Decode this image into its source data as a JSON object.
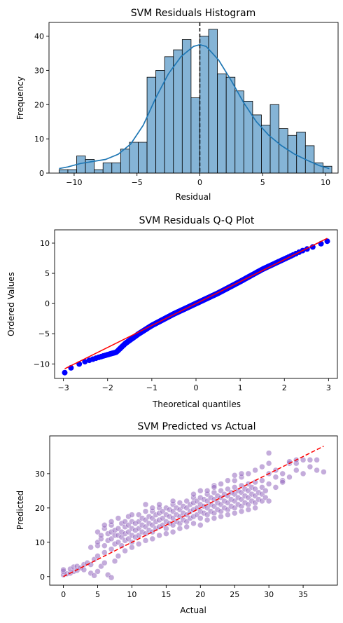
{
  "chart_data": [
    {
      "type": "bar",
      "title": "SVM Residuals Histogram",
      "xlabel": "Residual",
      "ylabel": "Frequency",
      "xlim": [
        -12,
        11
      ],
      "ylim": [
        0,
        44
      ],
      "xticks": [
        -10,
        -5,
        0,
        5,
        10
      ],
      "yticks": [
        0,
        10,
        20,
        30,
        40
      ],
      "bar_color": "#85b4d6",
      "kde_color": "#1f77b4",
      "bin_edges": [
        -11.2,
        -10.5,
        -9.8,
        -9.1,
        -8.4,
        -7.7,
        -7.0,
        -6.3,
        -5.6,
        -4.9,
        -4.2,
        -3.5,
        -2.8,
        -2.1,
        -1.4,
        -0.7,
        0.0,
        0.7,
        1.4,
        2.1,
        2.8,
        3.5,
        4.2,
        4.9,
        5.6,
        6.3,
        7.0,
        7.7,
        8.4,
        9.1,
        9.8,
        10.5
      ],
      "counts": [
        1,
        1,
        5,
        4,
        1,
        3,
        3,
        7,
        9,
        9,
        28,
        30,
        34,
        36,
        39,
        22,
        40,
        42,
        29,
        28,
        24,
        21,
        17,
        14,
        20,
        13,
        11,
        12,
        8,
        3,
        2
      ],
      "kde": {
        "x": [
          -11.2,
          -10.5,
          -9.5,
          -8.5,
          -7.5,
          -6.5,
          -5.5,
          -4.5,
          -3.5,
          -2.5,
          -1.5,
          -0.5,
          0.0,
          0.5,
          1.5,
          2.5,
          3.5,
          4.5,
          5.5,
          6.5,
          7.5,
          8.5,
          9.5,
          10.3
        ],
        "y": [
          1.3,
          1.8,
          2.8,
          3.4,
          4.0,
          5.5,
          8.5,
          14,
          22,
          29,
          34,
          37,
          37.5,
          37,
          33,
          27,
          20.5,
          15,
          11,
          8,
          5.6,
          3.8,
          2.2,
          1.3
        ]
      },
      "vline": {
        "x": 0,
        "style": "dashed",
        "color": "#000000"
      }
    },
    {
      "type": "scatter",
      "title": "SVM Residuals Q-Q Plot",
      "xlabel": "Theoretical quantiles",
      "ylabel": "Ordered Values",
      "xlim": [
        -3.2,
        3.2
      ],
      "ylim": [
        -12.4,
        12.2
      ],
      "xticks": [
        -3,
        -2,
        -1,
        0,
        1,
        2,
        3
      ],
      "yticks": [
        -10,
        -5,
        0,
        5,
        10
      ],
      "marker_color": "#0000ff",
      "line_color": "#ff0000",
      "fit_line": {
        "x": [
          -2.97,
          2.97
        ],
        "y": [
          -10.8,
          10.8
        ]
      },
      "n_points": 400,
      "deviation": {
        "q": [
          -3.0,
          -2.8,
          -2.5,
          -2.2,
          -2.0,
          -1.8,
          -1.6,
          -1.3,
          -1.0,
          -0.5,
          0.0,
          0.5,
          1.0,
          1.5,
          2.0,
          2.4,
          2.7,
          3.0
        ],
        "d": [
          -0.7,
          -0.3,
          -0.5,
          -0.9,
          -1.2,
          -1.5,
          -0.8,
          -0.3,
          0.0,
          0.1,
          0.0,
          -0.1,
          0.0,
          0.2,
          0.1,
          0.0,
          -0.3,
          -0.5
        ]
      }
    },
    {
      "type": "scatter",
      "title": "SVM Predicted vs Actual",
      "xlabel": "Actual",
      "ylabel": "Predicted",
      "xlim": [
        -2,
        40
      ],
      "ylim": [
        -2.5,
        41
      ],
      "xticks": [
        0,
        5,
        10,
        15,
        20,
        25,
        30,
        35
      ],
      "yticks": [
        0,
        10,
        20,
        30
      ],
      "marker_color": "#9467bd",
      "line_color": "#ff0000",
      "ideal_line": {
        "x": [
          0,
          38
        ],
        "y": [
          0,
          38
        ]
      },
      "points": [
        [
          0,
          0.5
        ],
        [
          0,
          1.5
        ],
        [
          0,
          2
        ],
        [
          0.5,
          0.8
        ],
        [
          1,
          1
        ],
        [
          1,
          2.2
        ],
        [
          1.5,
          1.5
        ],
        [
          1.5,
          2.8
        ],
        [
          2,
          3
        ],
        [
          2,
          1.8
        ],
        [
          2.5,
          2.5
        ],
        [
          3,
          3.5
        ],
        [
          3,
          2
        ],
        [
          3.5,
          4
        ],
        [
          4,
          3.5
        ],
        [
          4,
          8.5
        ],
        [
          4,
          1
        ],
        [
          4.5,
          0.3
        ],
        [
          4.5,
          5
        ],
        [
          5,
          6
        ],
        [
          5,
          9
        ],
        [
          5,
          10
        ],
        [
          5,
          13
        ],
        [
          5,
          1.5
        ],
        [
          5.5,
          11
        ],
        [
          5.5,
          12
        ],
        [
          5.5,
          3
        ],
        [
          6,
          9
        ],
        [
          6,
          14
        ],
        [
          6,
          15
        ],
        [
          6,
          4
        ],
        [
          6,
          7
        ],
        [
          6.5,
          10.5
        ],
        [
          6.5,
          12.5
        ],
        [
          6.5,
          0.5
        ],
        [
          7,
          8
        ],
        [
          7,
          11
        ],
        [
          7,
          13
        ],
        [
          7,
          15
        ],
        [
          7,
          16
        ],
        [
          7,
          -0.3
        ],
        [
          7.5,
          9.5
        ],
        [
          7.5,
          12
        ],
        [
          7.5,
          13.5
        ],
        [
          7.5,
          4.5
        ],
        [
          8,
          10
        ],
        [
          8,
          12
        ],
        [
          8,
          14
        ],
        [
          8,
          17
        ],
        [
          8,
          6
        ],
        [
          8.5,
          9
        ],
        [
          8.5,
          11.5
        ],
        [
          8.5,
          13
        ],
        [
          8.5,
          15.5
        ],
        [
          9,
          10.5
        ],
        [
          9,
          12.5
        ],
        [
          9,
          14.5
        ],
        [
          9,
          16
        ],
        [
          9,
          7.5
        ],
        [
          9.5,
          11
        ],
        [
          9.5,
          13
        ],
        [
          9.5,
          15
        ],
        [
          9.5,
          17.5
        ],
        [
          10,
          10
        ],
        [
          10,
          12
        ],
        [
          10,
          14
        ],
        [
          10,
          16
        ],
        [
          10,
          18
        ],
        [
          10,
          8.5
        ],
        [
          10.5,
          11.5
        ],
        [
          10.5,
          13.5
        ],
        [
          10.5,
          15.5
        ],
        [
          11,
          12
        ],
        [
          11,
          14
        ],
        [
          11,
          16
        ],
        [
          11,
          18
        ],
        [
          11,
          9.5
        ],
        [
          11.5,
          13
        ],
        [
          11.5,
          15
        ],
        [
          11.5,
          17
        ],
        [
          12,
          12.5
        ],
        [
          12,
          14.5
        ],
        [
          12,
          16.5
        ],
        [
          12,
          19
        ],
        [
          12,
          21
        ],
        [
          12,
          10.5
        ],
        [
          12.5,
          13.5
        ],
        [
          12.5,
          15.5
        ],
        [
          12.5,
          17.5
        ],
        [
          13,
          13
        ],
        [
          13,
          15
        ],
        [
          13,
          17
        ],
        [
          13,
          19
        ],
        [
          13,
          11
        ],
        [
          13.5,
          14
        ],
        [
          13.5,
          16
        ],
        [
          13.5,
          18
        ],
        [
          14,
          14.5
        ],
        [
          14,
          16.5
        ],
        [
          14,
          18.5
        ],
        [
          14,
          20
        ],
        [
          14,
          12
        ],
        [
          14.5,
          15
        ],
        [
          14.5,
          17
        ],
        [
          14.5,
          19
        ],
        [
          15,
          14
        ],
        [
          15,
          16
        ],
        [
          15,
          18
        ],
        [
          15,
          20
        ],
        [
          15,
          12.5
        ],
        [
          15.5,
          15.5
        ],
        [
          15.5,
          17.5
        ],
        [
          15.5,
          19.5
        ],
        [
          16,
          15
        ],
        [
          16,
          17
        ],
        [
          16,
          19
        ],
        [
          16,
          21
        ],
        [
          16,
          13
        ],
        [
          16.5,
          16
        ],
        [
          16.5,
          18
        ],
        [
          16.5,
          20
        ],
        [
          17,
          15.5
        ],
        [
          17,
          17.5
        ],
        [
          17,
          19.5
        ],
        [
          17,
          21.5
        ],
        [
          17,
          14
        ],
        [
          17.5,
          16.5
        ],
        [
          17.5,
          18.5
        ],
        [
          17.5,
          20.5
        ],
        [
          18,
          16
        ],
        [
          18,
          18
        ],
        [
          18,
          20
        ],
        [
          18,
          22
        ],
        [
          18,
          14.5
        ],
        [
          18.5,
          17
        ],
        [
          18.5,
          19
        ],
        [
          18.5,
          21
        ],
        [
          19,
          17.5
        ],
        [
          19,
          19.5
        ],
        [
          19,
          21.5
        ],
        [
          19,
          23
        ],
        [
          19,
          15.5
        ],
        [
          19.5,
          18
        ],
        [
          19.5,
          20
        ],
        [
          19.5,
          22
        ],
        [
          20,
          17
        ],
        [
          20,
          19
        ],
        [
          20,
          21
        ],
        [
          20,
          23
        ],
        [
          20,
          25
        ],
        [
          20,
          15
        ],
        [
          20.5,
          18.5
        ],
        [
          20.5,
          20.5
        ],
        [
          20.5,
          22.5
        ],
        [
          21,
          18
        ],
        [
          21,
          20
        ],
        [
          21,
          22
        ],
        [
          21,
          24
        ],
        [
          21,
          16.5
        ],
        [
          21.5,
          19
        ],
        [
          21.5,
          21
        ],
        [
          21.5,
          23
        ],
        [
          22,
          18.5
        ],
        [
          22,
          20.5
        ],
        [
          22,
          22.5
        ],
        [
          22,
          24.5
        ],
        [
          22,
          26.5
        ],
        [
          22,
          17
        ],
        [
          22.5,
          19.5
        ],
        [
          22.5,
          21.5
        ],
        [
          22.5,
          23.5
        ],
        [
          23,
          19
        ],
        [
          23,
          21
        ],
        [
          23,
          23
        ],
        [
          23,
          25
        ],
        [
          23,
          27
        ],
        [
          23,
          17.5
        ],
        [
          23.5,
          20
        ],
        [
          23.5,
          22
        ],
        [
          23.5,
          24
        ],
        [
          24,
          19.5
        ],
        [
          24,
          21.5
        ],
        [
          24,
          23.5
        ],
        [
          24,
          25.5
        ],
        [
          24,
          28
        ],
        [
          24,
          18
        ],
        [
          24.5,
          20.5
        ],
        [
          24.5,
          22.5
        ],
        [
          24.5,
          24.5
        ],
        [
          25,
          20
        ],
        [
          25,
          22
        ],
        [
          25,
          24
        ],
        [
          25,
          26
        ],
        [
          25,
          28
        ],
        [
          25,
          18.5
        ],
        [
          25.5,
          21
        ],
        [
          25.5,
          23
        ],
        [
          25.5,
          25
        ],
        [
          26,
          20.5
        ],
        [
          26,
          22.5
        ],
        [
          26,
          24.5
        ],
        [
          26,
          26.5
        ],
        [
          26,
          29
        ],
        [
          26,
          19
        ],
        [
          26.5,
          21.5
        ],
        [
          26.5,
          23.5
        ],
        [
          26.5,
          25.5
        ],
        [
          27,
          21
        ],
        [
          27,
          23
        ],
        [
          27,
          25
        ],
        [
          27,
          27
        ],
        [
          27,
          30
        ],
        [
          27,
          19.5
        ],
        [
          27.5,
          22
        ],
        [
          27.5,
          24
        ],
        [
          27.5,
          26
        ],
        [
          28,
          21.5
        ],
        [
          28,
          23.5
        ],
        [
          28,
          25.5
        ],
        [
          28,
          27.5
        ],
        [
          28,
          31
        ],
        [
          28,
          20
        ],
        [
          28.5,
          22.5
        ],
        [
          28.5,
          24.5
        ],
        [
          29,
          22
        ],
        [
          29,
          24
        ],
        [
          29,
          26
        ],
        [
          29,
          28
        ],
        [
          29,
          32
        ],
        [
          29.5,
          23
        ],
        [
          29.5,
          25
        ],
        [
          30,
          22
        ],
        [
          30,
          27
        ],
        [
          30,
          30
        ],
        [
          30,
          33
        ],
        [
          30,
          36
        ],
        [
          31,
          26
        ],
        [
          31,
          29
        ],
        [
          31,
          31
        ],
        [
          32,
          28
        ],
        [
          32,
          30
        ],
        [
          32,
          27.5
        ],
        [
          33,
          29
        ],
        [
          33,
          33
        ],
        [
          33,
          33.5
        ],
        [
          34,
          31
        ],
        [
          34,
          33
        ],
        [
          34,
          34
        ],
        [
          35,
          30
        ],
        [
          35,
          34
        ],
        [
          36,
          32
        ],
        [
          36,
          34
        ],
        [
          37,
          34
        ],
        [
          37,
          31
        ],
        [
          38,
          30.5
        ],
        [
          21,
          25
        ],
        [
          22,
          26
        ],
        [
          19,
          24
        ],
        [
          16,
          22
        ],
        [
          14,
          21
        ],
        [
          13,
          20
        ],
        [
          26,
          30
        ],
        [
          25,
          29.5
        ]
      ]
    }
  ]
}
